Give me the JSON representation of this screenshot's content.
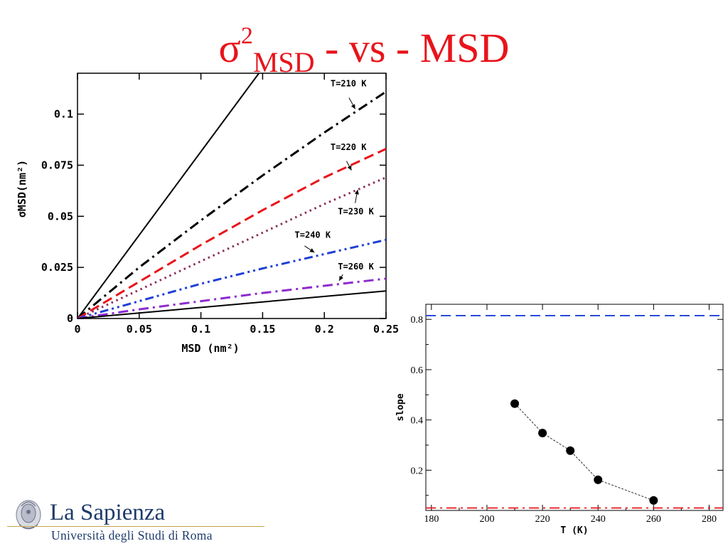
{
  "slide": {
    "title_base": "σ",
    "title_sup": "2",
    "title_sub": "MSD",
    "title_rest": " - vs - MSD",
    "title_color": "#e8141b"
  },
  "logo": {
    "name": "La Sapienza",
    "subtitle": "Università degli Studi di Roma",
    "color": "#1d3a6b"
  },
  "chart_data": [
    {
      "type": "line",
      "title": "",
      "xlabel": "MSD (nm²)",
      "ylabel": "σMSD(nm²)",
      "xlim": [
        0,
        0.25
      ],
      "ylim": [
        0,
        0.12
      ],
      "xticks": [
        0,
        0.05,
        0.1,
        0.15,
        0.2,
        0.25
      ],
      "xtick_labels": [
        "0",
        "0.05",
        "0.1",
        "0.15",
        "0.2",
        "0.25"
      ],
      "yticks": [
        0,
        0.025,
        0.05,
        0.075,
        0.1
      ],
      "ytick_labels": [
        "0",
        "0.025",
        "0.05",
        "0.075",
        "0.1"
      ],
      "grid": false,
      "series": [
        {
          "name": "",
          "color": "#000000",
          "dash": "solid",
          "x": [
            0,
            0.147
          ],
          "y": [
            0,
            0.12
          ]
        },
        {
          "name": "T=210 K",
          "color": "#000000",
          "dash": "dashdot",
          "x": [
            0,
            0.05,
            0.1,
            0.15,
            0.2,
            0.25
          ],
          "y": [
            0,
            0.025,
            0.048,
            0.07,
            0.091,
            0.111
          ]
        },
        {
          "name": "T=220 K",
          "color": "#e8141b",
          "dash": "dash",
          "x": [
            0,
            0.05,
            0.1,
            0.15,
            0.2,
            0.25
          ],
          "y": [
            0,
            0.018,
            0.036,
            0.053,
            0.069,
            0.083
          ]
        },
        {
          "name": "T=230 K",
          "color": "#8b2f5a",
          "dash": "dot",
          "x": [
            0,
            0.05,
            0.1,
            0.15,
            0.2,
            0.25
          ],
          "y": [
            0,
            0.014,
            0.028,
            0.042,
            0.056,
            0.069
          ]
        },
        {
          "name": "T=240 K",
          "color": "#1f3fd6",
          "dash": "dashdotdot",
          "x": [
            0,
            0.05,
            0.1,
            0.15,
            0.2,
            0.25
          ],
          "y": [
            0,
            0.0085,
            0.017,
            0.0245,
            0.0315,
            0.0385
          ]
        },
        {
          "name": "T=260 K",
          "color": "#8e2bcf",
          "dash": "dashdot",
          "x": [
            0,
            0.05,
            0.1,
            0.15,
            0.2,
            0.25
          ],
          "y": [
            0,
            0.0045,
            0.0085,
            0.0125,
            0.016,
            0.0195
          ]
        },
        {
          "name": "",
          "color": "#000000",
          "dash": "solid",
          "x": [
            0,
            0.25
          ],
          "y": [
            0,
            0.0135
          ]
        }
      ],
      "annotations": [
        "T=210 K",
        "T=220 K",
        "T=230 K",
        "T=240 K",
        "T=260 K"
      ]
    },
    {
      "type": "scatter",
      "title": "",
      "xlabel": "T (K)",
      "ylabel": "slope",
      "xlim": [
        178,
        285
      ],
      "ylim": [
        0.04,
        0.86
      ],
      "xticks": [
        180,
        200,
        220,
        240,
        260,
        280
      ],
      "xtick_labels": [
        "180",
        "200",
        "220",
        "240",
        "260",
        "280"
      ],
      "yticks": [
        0.2,
        0.4,
        0.6,
        0.8
      ],
      "ytick_labels": [
        "0.2",
        "0.4",
        "0.6",
        "0.8"
      ],
      "grid": false,
      "x": [
        210,
        220,
        230,
        240,
        260
      ],
      "y": [
        0.465,
        0.348,
        0.278,
        0.162,
        0.08
      ],
      "reference_lines": [
        {
          "y": 0.815,
          "color": "#1f3fd6",
          "dash": "dash"
        },
        {
          "y": 0.05,
          "color": "#e8141b",
          "dash": "dashdot"
        }
      ]
    }
  ]
}
